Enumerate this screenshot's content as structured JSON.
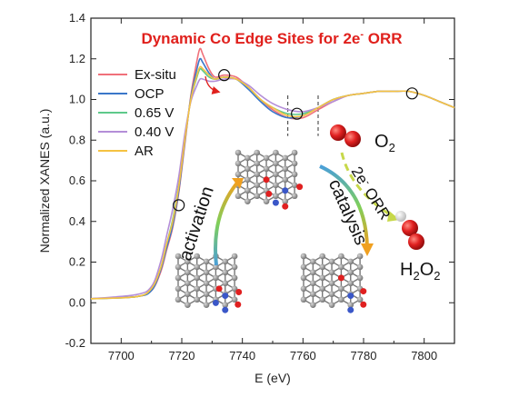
{
  "chart_data": {
    "type": "line",
    "title": "Dynamic Co Edge Sites for 2e⁻ ORR",
    "title_main": "Dynamic Co Edge Sites for 2e",
    "title_sup": "-",
    "title_end": " ORR",
    "xlabel": "E (eV)",
    "ylabel": "Normalized XANES (a.u.)",
    "xlim": [
      7690,
      7810
    ],
    "ylim": [
      -0.2,
      1.4
    ],
    "x_ticks": [
      7700,
      7720,
      7740,
      7760,
      7780,
      7800
    ],
    "y_ticks": [
      -0.2,
      0.0,
      0.2,
      0.4,
      0.6,
      0.8,
      1.0,
      1.2,
      1.4
    ],
    "x_tick_labels": [
      "7700",
      "7720",
      "7740",
      "7760",
      "7780",
      "7800"
    ],
    "y_tick_labels": [
      "-0.2",
      "0.0",
      "0.2",
      "0.4",
      "0.6",
      "0.8",
      "1.0",
      "1.2",
      "1.4"
    ],
    "grid": false,
    "legend_position": "top-left",
    "series": [
      {
        "name": "Ex-situ",
        "color": "#f0707a",
        "x": [
          7690,
          7705,
          7710,
          7713,
          7715,
          7717,
          7719,
          7721,
          7723,
          7725,
          7726,
          7727,
          7729,
          7731,
          7734,
          7738,
          7742,
          7746,
          7750,
          7755,
          7760,
          7765,
          7770,
          7775,
          7780,
          7785,
          7790,
          7795,
          7800,
          7805,
          7810
        ],
        "y": [
          0.02,
          0.03,
          0.06,
          0.15,
          0.26,
          0.37,
          0.54,
          0.78,
          1.02,
          1.19,
          1.25,
          1.22,
          1.15,
          1.11,
          1.12,
          1.11,
          1.06,
          1.0,
          0.95,
          0.91,
          0.91,
          0.95,
          0.99,
          1.02,
          1.03,
          1.04,
          1.04,
          1.04,
          1.02,
          0.99,
          0.96
        ]
      },
      {
        "name": "OCP",
        "color": "#3a77c9",
        "x": [
          7690,
          7705,
          7710,
          7713,
          7715,
          7717,
          7719,
          7721,
          7723,
          7725,
          7726,
          7727,
          7729,
          7731,
          7734,
          7738,
          7742,
          7746,
          7750,
          7755,
          7760,
          7765,
          7770,
          7775,
          7780,
          7785,
          7790,
          7795,
          7800,
          7805,
          7810
        ],
        "y": [
          0.02,
          0.03,
          0.06,
          0.16,
          0.27,
          0.38,
          0.55,
          0.79,
          1.01,
          1.15,
          1.2,
          1.18,
          1.13,
          1.1,
          1.11,
          1.1,
          1.05,
          0.99,
          0.94,
          0.91,
          0.92,
          0.96,
          1.0,
          1.02,
          1.03,
          1.04,
          1.04,
          1.04,
          1.02,
          0.99,
          0.96
        ]
      },
      {
        "name": "0.65 V",
        "color": "#5ec98a",
        "x": [
          7690,
          7705,
          7710,
          7713,
          7715,
          7717,
          7719,
          7721,
          7723,
          7725,
          7726,
          7727,
          7729,
          7731,
          7734,
          7738,
          7742,
          7746,
          7750,
          7755,
          7760,
          7765,
          7770,
          7775,
          7780,
          7785,
          7790,
          7795,
          7800,
          7805,
          7810
        ],
        "y": [
          0.02,
          0.03,
          0.07,
          0.17,
          0.29,
          0.41,
          0.58,
          0.81,
          1.0,
          1.11,
          1.15,
          1.14,
          1.11,
          1.1,
          1.11,
          1.1,
          1.06,
          1.0,
          0.96,
          0.93,
          0.93,
          0.96,
          1.0,
          1.02,
          1.03,
          1.04,
          1.04,
          1.04,
          1.02,
          0.99,
          0.96
        ]
      },
      {
        "name": "0.40 V",
        "color": "#b48ed8",
        "x": [
          7690,
          7705,
          7710,
          7713,
          7715,
          7717,
          7719,
          7721,
          7723,
          7725,
          7726,
          7727,
          7729,
          7731,
          7734,
          7738,
          7742,
          7746,
          7750,
          7755,
          7760,
          7765,
          7770,
          7775,
          7780,
          7785,
          7790,
          7795,
          7800,
          7805,
          7810
        ],
        "y": [
          0.02,
          0.04,
          0.08,
          0.2,
          0.33,
          0.46,
          0.62,
          0.83,
          0.99,
          1.07,
          1.1,
          1.1,
          1.09,
          1.09,
          1.1,
          1.1,
          1.07,
          1.02,
          0.98,
          0.95,
          0.94,
          0.96,
          0.99,
          1.02,
          1.03,
          1.04,
          1.04,
          1.04,
          1.02,
          0.99,
          0.96
        ]
      },
      {
        "name": "AR",
        "color": "#f5c242",
        "x": [
          7690,
          7705,
          7710,
          7713,
          7715,
          7717,
          7719,
          7721,
          7723,
          7725,
          7726,
          7727,
          7729,
          7731,
          7734,
          7738,
          7742,
          7746,
          7750,
          7755,
          7760,
          7765,
          7770,
          7775,
          7780,
          7785,
          7790,
          7795,
          7800,
          7805,
          7810
        ],
        "y": [
          0.02,
          0.03,
          0.07,
          0.17,
          0.29,
          0.4,
          0.57,
          0.8,
          1.0,
          1.12,
          1.16,
          1.15,
          1.12,
          1.1,
          1.11,
          1.1,
          1.06,
          1.0,
          0.96,
          0.92,
          0.92,
          0.96,
          1.0,
          1.02,
          1.03,
          1.04,
          1.04,
          1.04,
          1.02,
          0.99,
          0.96
        ]
      }
    ],
    "markers": [
      {
        "label": "isosbestic-point",
        "x": 7719,
        "y": 0.48
      },
      {
        "label": "isosbestic-point",
        "x": 7734,
        "y": 1.12
      },
      {
        "label": "isosbestic-point",
        "x": 7758,
        "y": 0.93
      },
      {
        "label": "isosbestic-point",
        "x": 7796,
        "y": 1.03
      }
    ],
    "dashed_lines_x": [
      7755,
      7765
    ],
    "annotations": {
      "o2_label": "O",
      "o2_sub": "2",
      "h2o2_label_h": "H",
      "h2o2_sub1": "2",
      "h2o2_label_o": "O",
      "h2o2_sub2": "2",
      "arc_left_label": "activation",
      "arc_right_label": "catalysis",
      "reaction_label": "2e",
      "reaction_sup": "-",
      "reaction_end": " ORR"
    }
  },
  "colors": {
    "title": "#e0201c",
    "arrow_start": "#4a9fd8",
    "arrow_mid": "#7fcf5a",
    "arrow_end": "#f0a020",
    "carbon": "#8c8c8c",
    "oxygen": "#e02020",
    "nitrogen": "#3a57c8",
    "hydrogen": "#f2f2f2"
  }
}
